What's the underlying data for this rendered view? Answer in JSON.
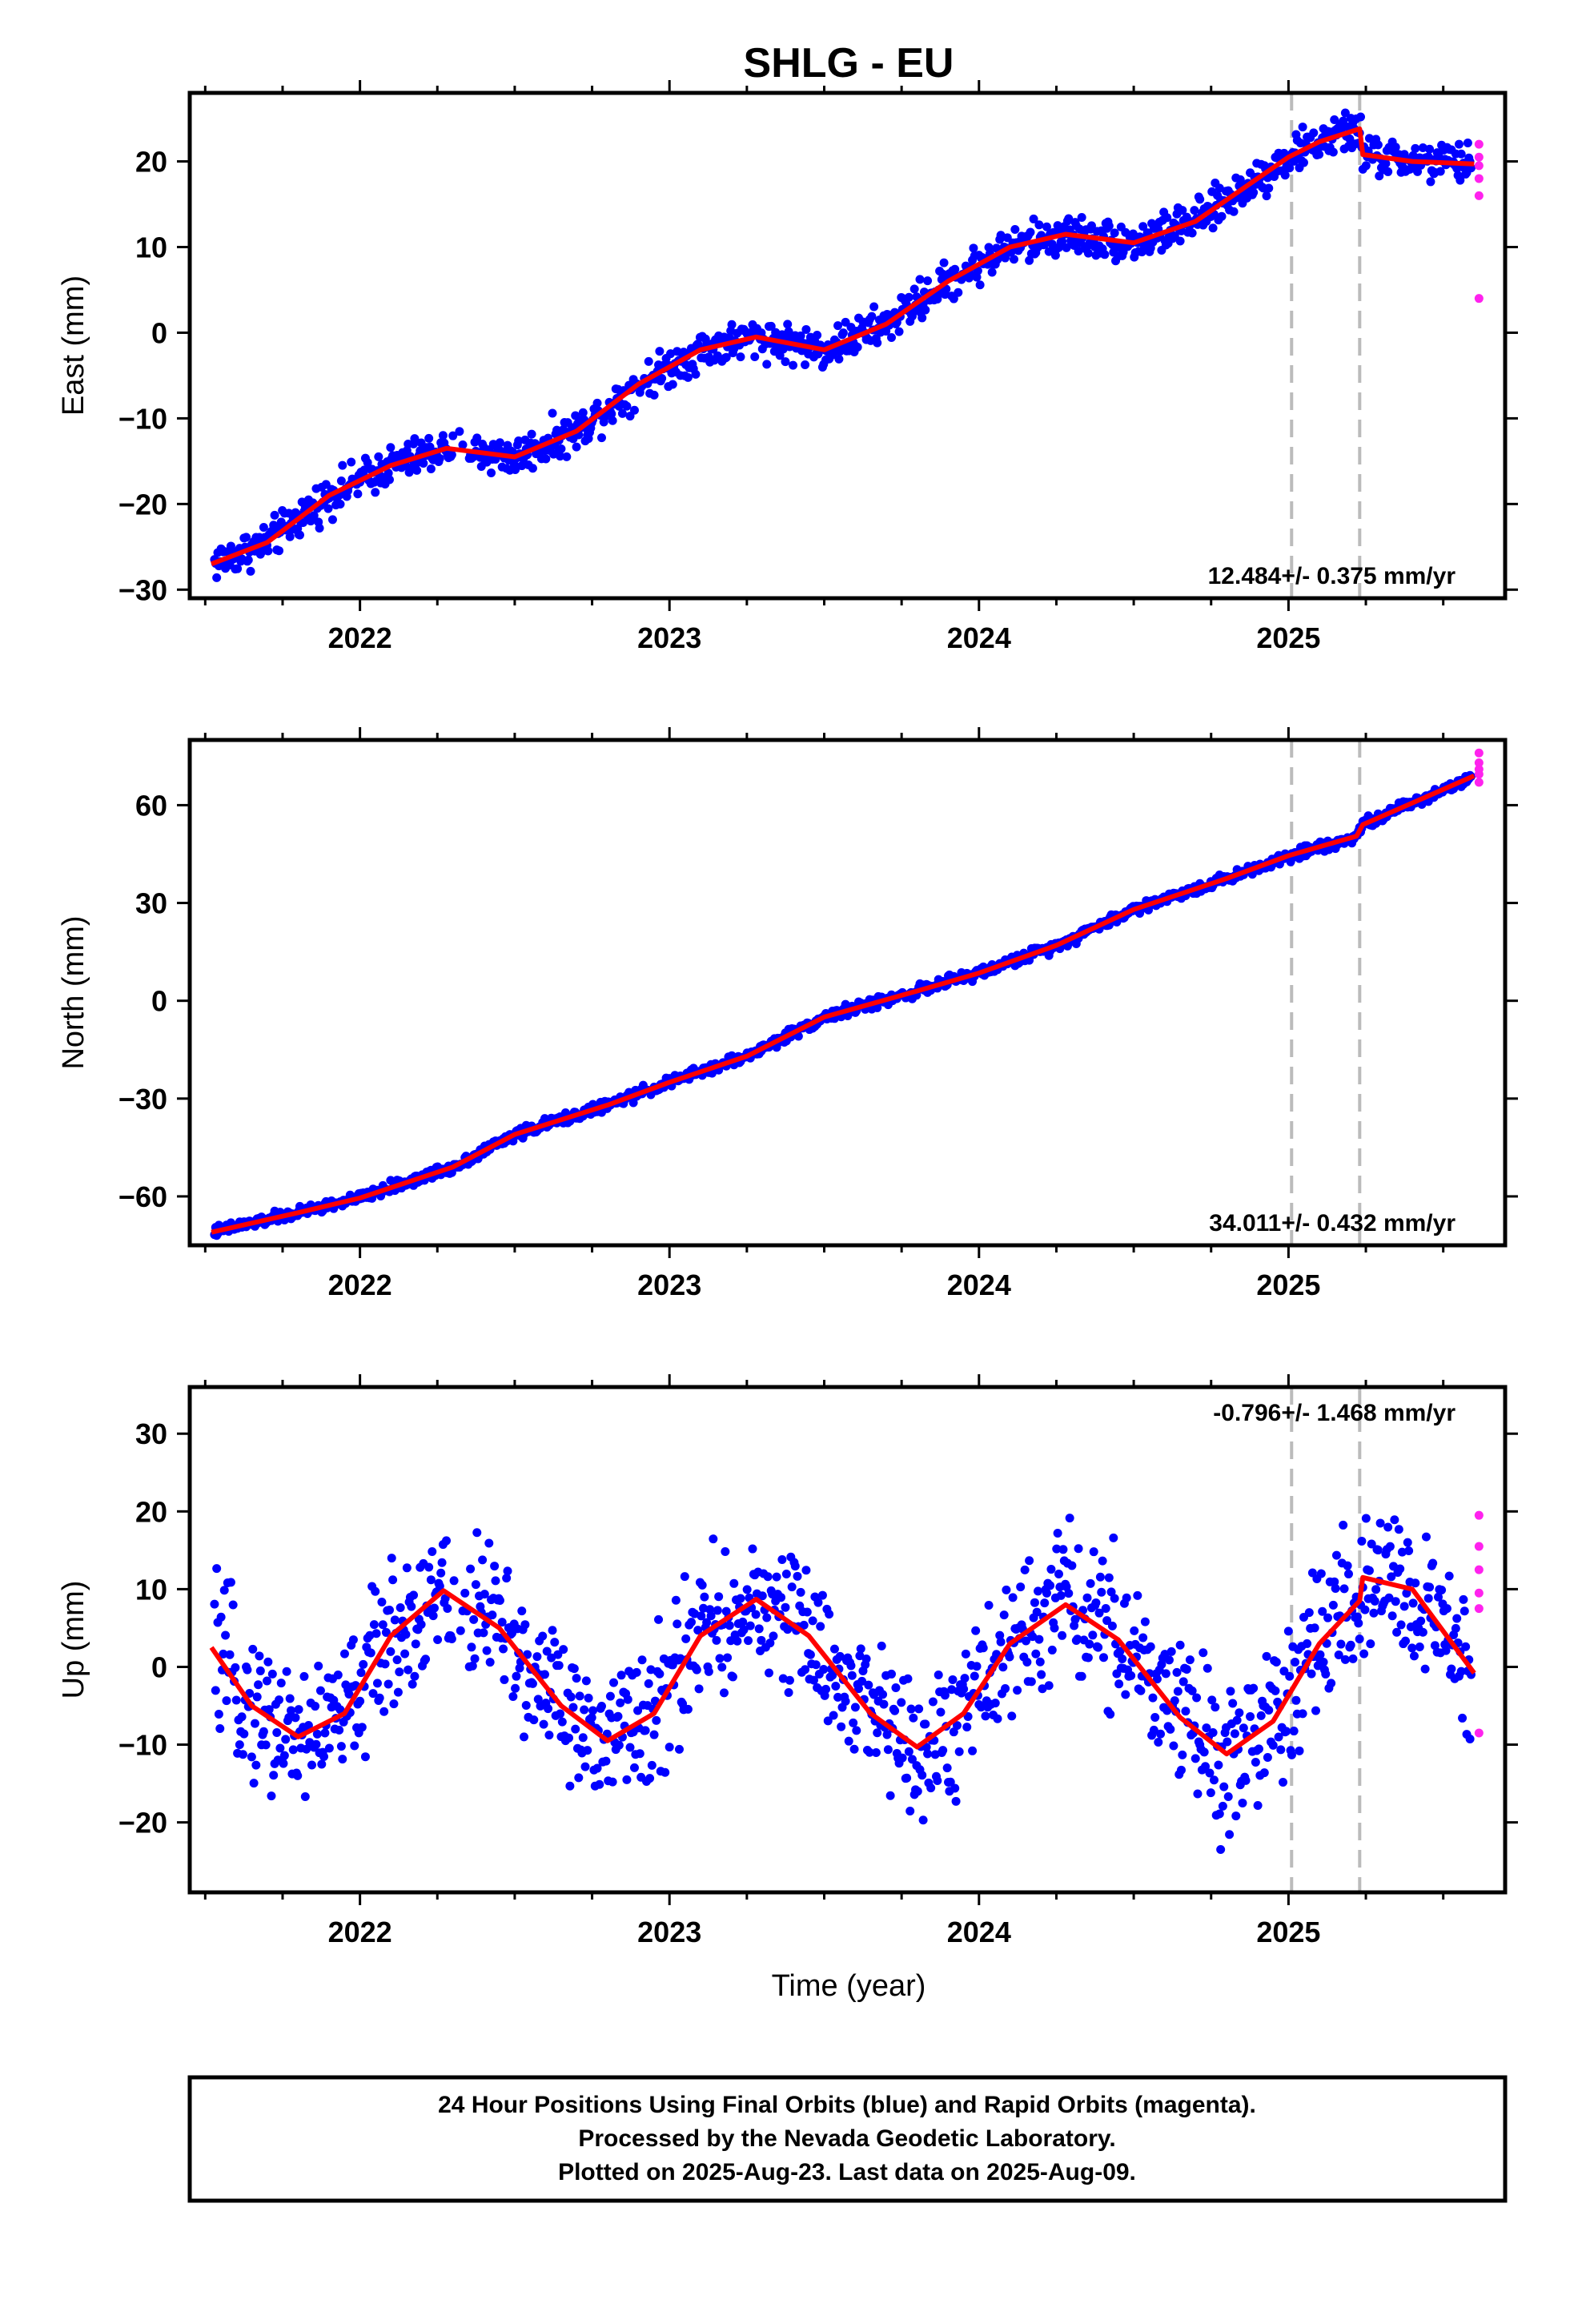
{
  "title": "SHLG - EU",
  "xlabel": "Time (year)",
  "colors": {
    "final": "#0000ff",
    "rapid": "#ff22ee",
    "model": "#ff0000",
    "event": "#bbbbbb"
  },
  "footer": {
    "line1": "24 Hour Positions Using Final Orbits (blue) and Rapid Orbits (magenta).",
    "line2": "Processed by the Nevada Geodetic Laboratory.",
    "line3": "Plotted on 2025-Aug-23. Last data on 2025-Aug-09."
  },
  "chart_data": [
    {
      "type": "scatter",
      "ylabel": "East (mm)",
      "rate_label": "12.484+/- 0.375 mm/yr",
      "xlim": [
        2021.45,
        2025.7
      ],
      "ylim": [
        -31,
        28
      ],
      "xticks": [
        2022,
        2023,
        2024,
        2025
      ],
      "yticks": [
        -30,
        -20,
        -10,
        0,
        10,
        20
      ],
      "event_lines": [
        2025.01,
        2025.23
      ],
      "model": {
        "x": [
          2021.52,
          2021.7,
          2021.9,
          2022.1,
          2022.28,
          2022.5,
          2022.7,
          2022.9,
          2023.1,
          2023.28,
          2023.5,
          2023.7,
          2023.9,
          2024.1,
          2024.28,
          2024.5,
          2024.7,
          2024.9,
          2025.0,
          2025.1,
          2025.23,
          2025.24,
          2025.4,
          2025.6
        ],
        "y": [
          -27.0,
          -24.5,
          -19.0,
          -15.5,
          -13.5,
          -14.5,
          -11.5,
          -6.0,
          -2.0,
          -0.5,
          -2.0,
          1.0,
          6.0,
          10.0,
          11.5,
          10.5,
          13.0,
          18.0,
          20.5,
          22.3,
          23.8,
          20.8,
          20.0,
          19.7
        ]
      },
      "final_noise": 1.6,
      "gaps": [
        [
          2022.3,
          2022.35
        ]
      ],
      "rapid": {
        "x": [
          2025.6,
          2025.6,
          2025.6,
          2025.6,
          2025.6,
          2025.6
        ],
        "y": [
          22.0,
          20.5,
          19.5,
          18.0,
          16.0,
          4.0
        ]
      }
    },
    {
      "type": "scatter",
      "ylabel": "North (mm)",
      "rate_label": "34.011+/- 0.432 mm/yr",
      "xlim": [
        2021.45,
        2025.7
      ],
      "ylim": [
        -75,
        80
      ],
      "xticks": [
        2022,
        2023,
        2024,
        2025
      ],
      "yticks": [
        -60,
        -30,
        0,
        30,
        60
      ],
      "event_lines": [
        2025.01,
        2025.23
      ],
      "model": {
        "x": [
          2021.52,
          2021.8,
          2022.0,
          2022.3,
          2022.5,
          2022.8,
          2023.0,
          2023.25,
          2023.5,
          2023.8,
          2024.0,
          2024.25,
          2024.5,
          2024.8,
          2025.0,
          2025.22,
          2025.24,
          2025.6
        ],
        "y": [
          -71.0,
          -65.0,
          -60.5,
          -51.0,
          -41.0,
          -32.0,
          -25.0,
          -17.0,
          -5.0,
          3.0,
          8.5,
          17.0,
          28.0,
          37.5,
          44.5,
          50.5,
          54.0,
          69.0
        ]
      },
      "final_noise": 1.2,
      "gaps": [],
      "rapid": {
        "x": [
          2025.6,
          2025.6,
          2025.6,
          2025.6,
          2025.6
        ],
        "y": [
          76.0,
          73.0,
          71.0,
          69.5,
          67.0
        ]
      }
    },
    {
      "type": "scatter",
      "ylabel": "Up (mm)",
      "rate_label": "-0.796+/- 1.468 mm/yr",
      "xlim": [
        2021.45,
        2025.7
      ],
      "ylim": [
        -29,
        36
      ],
      "xticks": [
        2022,
        2023,
        2024,
        2025
      ],
      "yticks": [
        -20,
        -10,
        0,
        10,
        20,
        30
      ],
      "event_lines": [
        2025.01,
        2025.23
      ],
      "model": {
        "x": [
          2021.52,
          2021.65,
          2021.8,
          2021.95,
          2022.1,
          2022.27,
          2022.45,
          2022.65,
          2022.8,
          2022.95,
          2023.1,
          2023.28,
          2023.45,
          2023.65,
          2023.8,
          2023.95,
          2024.1,
          2024.28,
          2024.45,
          2024.65,
          2024.8,
          2024.95,
          2025.1,
          2025.23,
          2025.24,
          2025.4,
          2025.6
        ],
        "y": [
          2.5,
          -5.0,
          -9.0,
          -6.0,
          4.0,
          9.8,
          5.0,
          -5.0,
          -9.5,
          -6.0,
          4.0,
          8.7,
          4.0,
          -6.0,
          -10.3,
          -6.0,
          3.0,
          8.0,
          3.5,
          -6.5,
          -11.2,
          -7.0,
          3.0,
          8.5,
          11.5,
          10.0,
          -0.8
        ]
      },
      "final_noise": 6.5,
      "gaps": [
        [
          2022.3,
          2022.35
        ]
      ],
      "rapid": {
        "x": [
          2025.6,
          2025.6,
          2025.6,
          2025.6,
          2025.6,
          2025.6
        ],
        "y": [
          19.5,
          15.5,
          12.5,
          9.5,
          7.5,
          -8.5
        ]
      }
    }
  ]
}
